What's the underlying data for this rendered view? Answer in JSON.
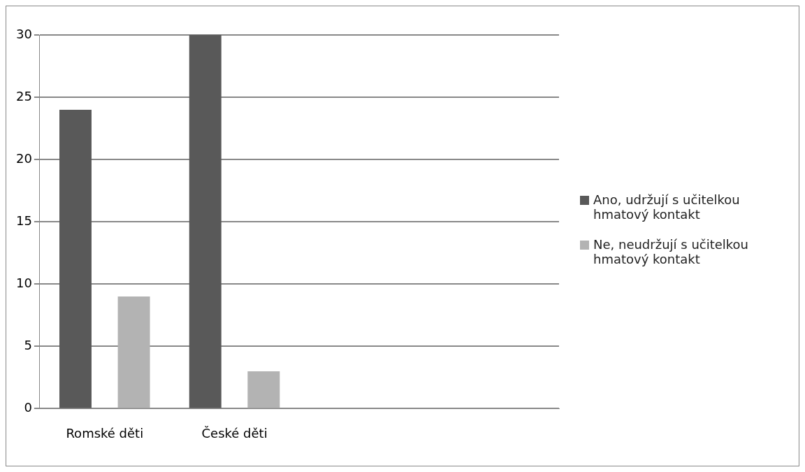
{
  "chart_data": {
    "type": "bar",
    "categories": [
      "Romské děti",
      "České děti",
      null,
      null
    ],
    "series": [
      {
        "name": "Ano, udržují s učitelkou hmatový kontakt",
        "color": "#595959",
        "values": [
          24,
          30,
          null,
          null
        ]
      },
      {
        "name": "Ne, neudržují s učitelkou hmatový kontakt",
        "color": "#b3b3b3",
        "values": [
          9,
          3,
          null,
          null
        ]
      }
    ],
    "ylim": [
      0,
      30
    ],
    "yticks": [
      0,
      5,
      10,
      15,
      20,
      25,
      30
    ],
    "grid": "y",
    "legend": "right"
  }
}
